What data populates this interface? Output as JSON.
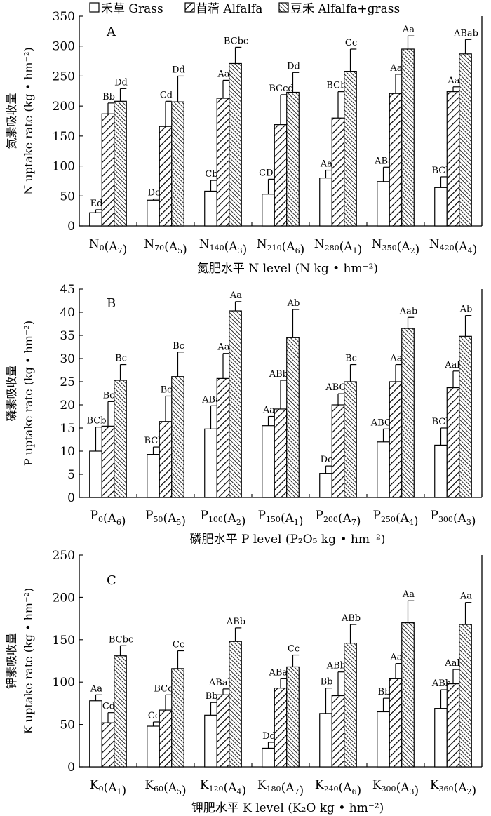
{
  "legend": {
    "items": [
      {
        "label": "禾草 Grass",
        "pattern": "none"
      },
      {
        "label": "苜蓿 Alfalfa",
        "pattern": "diag"
      },
      {
        "label": "豆禾 Alfalfa+grass",
        "pattern": "dense"
      }
    ]
  },
  "chart_data": [
    {
      "type": "bar",
      "panel": "A",
      "ylabel_cn": "氮素吸收量",
      "ylabel_en": "N uptake rate (kg • hm⁻²)",
      "xlabel": "氮肥水平 N level (N kg • hm⁻²)",
      "ylim": [
        0,
        350
      ],
      "yticks": [
        0,
        50,
        100,
        150,
        200,
        250,
        300,
        350
      ],
      "categories": [
        {
          "base": "N",
          "sub": "0",
          "mid": "(A",
          "sub2": "7",
          "end": ")"
        },
        {
          "base": "N",
          "sub": "70",
          "mid": "(A",
          "sub2": "5",
          "end": ")"
        },
        {
          "base": "N",
          "sub": "140",
          "mid": "(A",
          "sub2": "3",
          "end": ")"
        },
        {
          "base": "N",
          "sub": "210",
          "mid": "(A",
          "sub2": "6",
          "end": ")"
        },
        {
          "base": "N",
          "sub": "280",
          "mid": "(A",
          "sub2": "1",
          "end": ")"
        },
        {
          "base": "N",
          "sub": "350",
          "mid": "(A",
          "sub2": "2",
          "end": ")"
        },
        {
          "base": "N",
          "sub": "420",
          "mid": "(A",
          "sub2": "4",
          "end": ")"
        }
      ],
      "series": [
        {
          "name": "Grass",
          "values": [
            22,
            43,
            58,
            53,
            80,
            74,
            64
          ],
          "errors": [
            5,
            2,
            18,
            25,
            13,
            24,
            18
          ],
          "labels": [
            "Ed",
            "Dc",
            "Cb",
            "CDb",
            "Aa",
            "ABa",
            "BCb"
          ]
        },
        {
          "name": "Alfalfa",
          "values": [
            187,
            166,
            213,
            169,
            180,
            221,
            224
          ],
          "errors": [
            18,
            42,
            30,
            50,
            44,
            32,
            8
          ],
          "labels": [
            "Bb",
            "Cd",
            "Aa",
            "BCcd",
            "BCbc",
            "Aa",
            "Aa"
          ]
        },
        {
          "name": "Alfalfa+grass",
          "values": [
            208,
            207,
            271,
            223,
            258,
            295,
            287
          ],
          "errors": [
            21,
            43,
            27,
            33,
            37,
            22,
            24
          ],
          "labels": [
            "Dd",
            "Dd",
            "BCbc",
            "Dd",
            "Cc",
            "Aa",
            "ABab"
          ]
        }
      ]
    },
    {
      "type": "bar",
      "panel": "B",
      "ylabel_cn": "磷素吸收量",
      "ylabel_en": "P uptake rate (kg • hm⁻²)",
      "xlabel": "磷肥水平 P level (P₂O₅ kg • hm⁻²)",
      "ylim": [
        0,
        45
      ],
      "yticks": [
        0,
        5,
        10,
        15,
        20,
        25,
        30,
        35,
        40,
        45
      ],
      "categories": [
        {
          "base": "P",
          "sub": "0",
          "mid": "(A",
          "sub2": "6",
          "end": ")"
        },
        {
          "base": "P",
          "sub": "50",
          "mid": "(A",
          "sub2": "5",
          "end": ")"
        },
        {
          "base": "P",
          "sub": "100",
          "mid": "(A",
          "sub2": "2",
          "end": ")"
        },
        {
          "base": "P",
          "sub": "150",
          "mid": "(A",
          "sub2": "1",
          "end": ")"
        },
        {
          "base": "P",
          "sub": "200",
          "mid": "(A",
          "sub2": "7",
          "end": ")"
        },
        {
          "base": "P",
          "sub": "250",
          "mid": "(A",
          "sub2": "4",
          "end": ")"
        },
        {
          "base": "P",
          "sub": "300",
          "mid": "(A",
          "sub2": "3",
          "end": ")"
        }
      ],
      "series": [
        {
          "name": "Grass",
          "values": [
            10,
            9.3,
            14.8,
            15.5,
            5.2,
            12,
            11.3
          ],
          "errors": [
            5.2,
            1.6,
            5,
            2,
            1.6,
            2.8,
            3.7
          ],
          "labels": [
            "BCb",
            "BCb",
            "ABa",
            "Aa",
            "Dc",
            "ABCb",
            "BCb"
          ]
        },
        {
          "name": "Alfalfa",
          "values": [
            15.4,
            16.4,
            25.7,
            19.1,
            20,
            25,
            23.7
          ],
          "errors": [
            5.3,
            5.5,
            5.4,
            6.2,
            2.4,
            3.7,
            3.6
          ],
          "labels": [
            "Bc",
            "Bc",
            "Aa",
            "ABbc",
            "ABCb",
            "Aa",
            "Aab"
          ]
        },
        {
          "name": "Alfalfa+grass",
          "values": [
            25.3,
            26.1,
            40.3,
            34.5,
            25,
            36.5,
            34.8
          ],
          "errors": [
            3.4,
            5.3,
            2,
            6.1,
            3.7,
            2.4,
            4.5
          ],
          "labels": [
            "Bc",
            "Bc",
            "Aa",
            "Ab",
            "Bc",
            "Aab",
            "Ab"
          ]
        }
      ]
    },
    {
      "type": "bar",
      "panel": "C",
      "ylabel_cn": "钾素吸收量",
      "ylabel_en": "K uptake rate (kg • hm⁻²)",
      "xlabel": "钾肥水平 K level (K₂O kg • hm⁻²)",
      "ylim": [
        0,
        250
      ],
      "yticks": [
        0,
        50,
        100,
        150,
        200,
        250
      ],
      "categories": [
        {
          "base": "K",
          "sub": "0",
          "mid": "(A",
          "sub2": "1",
          "end": ")"
        },
        {
          "base": "K",
          "sub": "60",
          "mid": "(A",
          "sub2": "5",
          "end": ")"
        },
        {
          "base": "K",
          "sub": "120",
          "mid": "(A",
          "sub2": "4",
          "end": ")"
        },
        {
          "base": "K",
          "sub": "180",
          "mid": "(A",
          "sub2": "7",
          "end": ")"
        },
        {
          "base": "K",
          "sub": "240",
          "mid": "(A",
          "sub2": "6",
          "end": ")"
        },
        {
          "base": "K",
          "sub": "300",
          "mid": "(A",
          "sub2": "3",
          "end": ")"
        },
        {
          "base": "K",
          "sub": "360",
          "mid": "(A",
          "sub2": "2",
          "end": ")"
        }
      ],
      "series": [
        {
          "name": "Grass",
          "values": [
            78,
            48,
            61,
            22,
            63,
            65,
            69
          ],
          "errors": [
            7,
            5,
            15,
            7,
            30,
            16,
            22
          ],
          "labels": [
            "Aa",
            "Cc",
            "Bb",
            "Dd",
            "Bb",
            "Bb",
            "ABb"
          ]
        },
        {
          "name": "Alfalfa",
          "values": [
            52,
            67,
            85,
            93,
            84,
            104,
            98
          ],
          "errors": [
            12,
            18,
            7,
            11,
            28,
            18,
            17
          ],
          "labels": [
            "Cd",
            "BCcd",
            "ABabc",
            "ABab",
            "ABbc",
            "Aa",
            "Aab"
          ]
        },
        {
          "name": "Alfalfa+grass",
          "values": [
            131,
            116,
            148,
            118,
            146,
            170,
            168
          ],
          "errors": [
            12,
            21,
            16,
            14,
            22,
            26,
            26
          ],
          "labels": [
            "BCbc",
            "Cc",
            "ABb",
            "Cc",
            "ABb",
            "Aa",
            "Aa"
          ]
        }
      ]
    }
  ]
}
